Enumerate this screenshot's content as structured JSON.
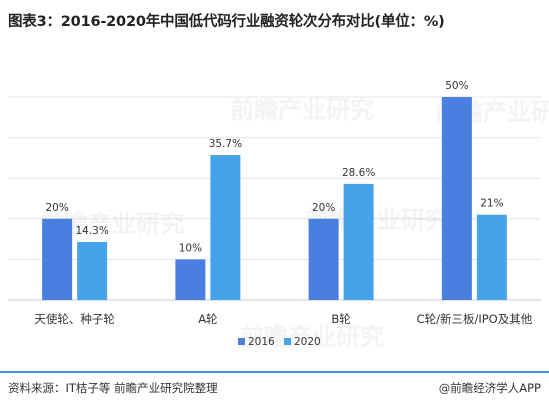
{
  "header": {
    "title": "图表3：2016-2020年中国低代码行业融资轮次分布对比(单位：%)"
  },
  "footer": {
    "source": "资料来源：IT桔子等 前瞻产业研究院整理",
    "brand": "@前瞻经济学人APP"
  },
  "watermark": {
    "text": "前瞻产业研究"
  },
  "chart_data": {
    "type": "bar",
    "title": "图表3：2016-2020年中国低代码行业融资轮次分布对比(单位：%)",
    "categories": [
      "天使轮、种子轮",
      "A轮",
      "B轮",
      "C轮/新三板/IPO及其他"
    ],
    "series": [
      {
        "name": "2016",
        "values": [
          20,
          10,
          20,
          50
        ],
        "labels": [
          "20%",
          "10%",
          "20%",
          "50%"
        ],
        "color": "#4a7fe0"
      },
      {
        "name": "2020",
        "values": [
          14.3,
          35.7,
          28.6,
          21
        ],
        "labels": [
          "14.3%",
          "35.7%",
          "28.6%",
          "21%"
        ],
        "color": "#45a3ea"
      }
    ],
    "ylim": [
      0,
      50
    ],
    "grid": true,
    "legend": "bottom",
    "xlabel": "",
    "ylabel": ""
  }
}
